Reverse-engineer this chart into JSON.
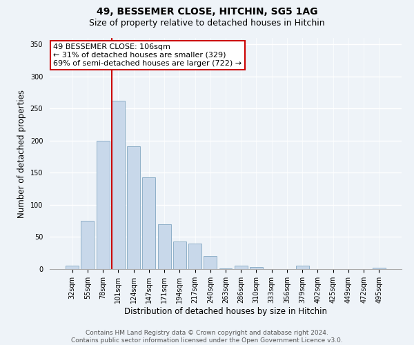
{
  "title": "49, BESSEMER CLOSE, HITCHIN, SG5 1AG",
  "subtitle": "Size of property relative to detached houses in Hitchin",
  "xlabel": "Distribution of detached houses by size in Hitchin",
  "ylabel": "Number of detached properties",
  "bar_labels": [
    "32sqm",
    "55sqm",
    "78sqm",
    "101sqm",
    "124sqm",
    "147sqm",
    "171sqm",
    "194sqm",
    "217sqm",
    "240sqm",
    "263sqm",
    "286sqm",
    "310sqm",
    "333sqm",
    "356sqm",
    "379sqm",
    "402sqm",
    "425sqm",
    "449sqm",
    "472sqm",
    "495sqm"
  ],
  "bar_heights": [
    5,
    75,
    200,
    262,
    191,
    143,
    70,
    43,
    40,
    20,
    1,
    5,
    3,
    0,
    0,
    5,
    0,
    0,
    0,
    0,
    2
  ],
  "bar_color": "#c8d8ea",
  "bar_edge_color": "#8fb0c8",
  "property_line_index": 3,
  "property_line_color": "#cc0000",
  "annotation_line1": "49 BESSEMER CLOSE: 106sqm",
  "annotation_line2": "← 31% of detached houses are smaller (329)",
  "annotation_line3": "69% of semi-detached houses are larger (722) →",
  "annotation_box_color": "#ffffff",
  "annotation_box_edge": "#cc0000",
  "ylim": [
    0,
    360
  ],
  "yticks": [
    0,
    50,
    100,
    150,
    200,
    250,
    300,
    350
  ],
  "footer_line1": "Contains HM Land Registry data © Crown copyright and database right 2024.",
  "footer_line2": "Contains public sector information licensed under the Open Government Licence v3.0.",
  "bg_color": "#eef3f8",
  "grid_color": "#ffffff",
  "title_fontsize": 10,
  "subtitle_fontsize": 9,
  "ylabel_fontsize": 8.5,
  "xlabel_fontsize": 8.5,
  "tick_fontsize": 7,
  "annotation_fontsize": 8,
  "footer_fontsize": 6.5
}
